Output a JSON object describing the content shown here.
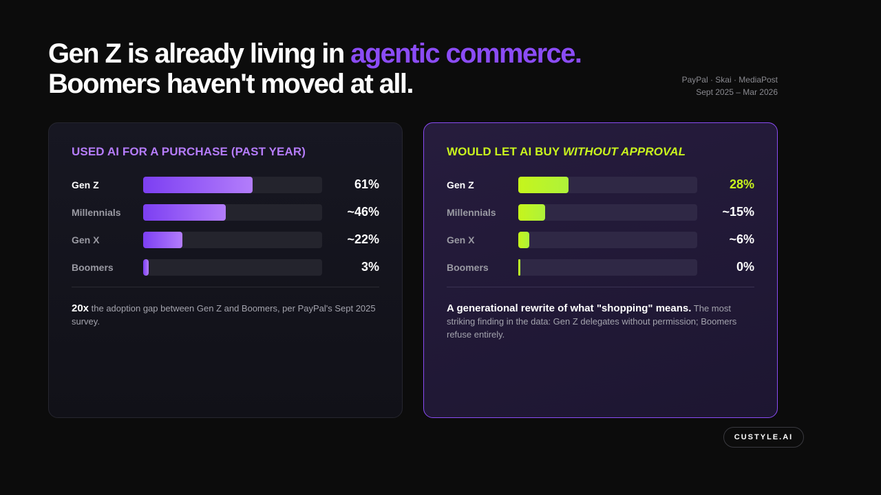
{
  "header": {
    "title_part1": "Gen Z is already living in ",
    "title_accent": "agentic commerce.",
    "title_line2": "Boomers haven't moved at all.",
    "source_line1": "PayPal · Skai · MediaPost",
    "source_line2": "Sept 2025 – Mar 2026"
  },
  "chart_data": [
    {
      "type": "bar",
      "title": "USED AI FOR A PURCHASE (PAST YEAR)",
      "categories": [
        "Gen Z",
        "Millennials",
        "Gen X",
        "Boomers"
      ],
      "values": [
        61,
        46,
        22,
        3
      ],
      "value_labels": [
        "61%",
        "~46%",
        "~22%",
        "3%"
      ],
      "xlim": [
        0,
        100
      ],
      "note_strong": "20x",
      "note_text": " the adoption gap between Gen Z and Boomers, per PayPal's Sept 2025 survey.",
      "colors": {
        "bar_start": "#7c3ff2",
        "bar_end": "#b37dfb",
        "title": "#b57cfb"
      }
    },
    {
      "type": "bar",
      "title_part1": "WOULD LET AI BUY ",
      "title_emphasis": "WITHOUT APPROVAL",
      "categories": [
        "Gen Z",
        "Millennials",
        "Gen X",
        "Boomers"
      ],
      "values": [
        28,
        15,
        6,
        0
      ],
      "value_labels": [
        "28%",
        "~15%",
        "~6%",
        "0%"
      ],
      "xlim": [
        0,
        100
      ],
      "note_strong": "A generational rewrite of what \"shopping\" means.",
      "note_text": " The most striking finding in the data: Gen Z delegates without permission; Boomers refuse entirely.",
      "colors": {
        "bar_start": "#c6f51c",
        "bar_end": "#aef23a",
        "title": "#c9f41e"
      }
    }
  ],
  "brand": {
    "label": "CUSTYLE.AI"
  },
  "colors": {
    "accent": "#8b4cf6",
    "background": "#0c0c0c"
  }
}
